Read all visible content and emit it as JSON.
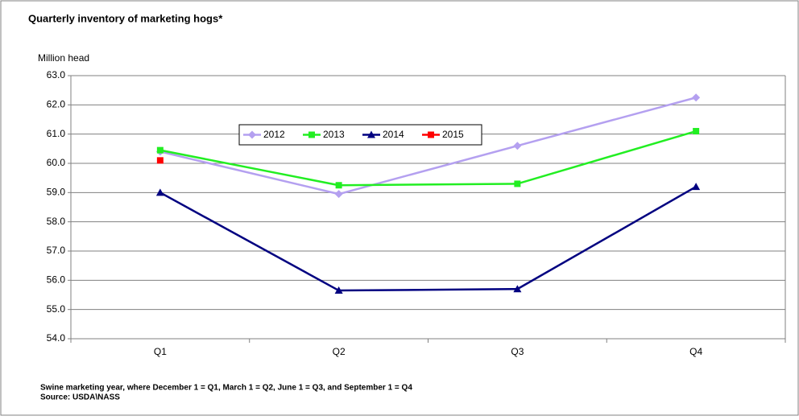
{
  "chart_data": {
    "type": "line",
    "title": "Quarterly inventory of marketing hogs*",
    "y_label": "Million head",
    "categories": [
      "Q1",
      "Q2",
      "Q3",
      "Q4"
    ],
    "series": [
      {
        "name": "2012",
        "color": "#b4a0f0",
        "marker": "diamond",
        "values": [
          60.4,
          58.95,
          60.6,
          62.25
        ]
      },
      {
        "name": "2013",
        "color": "#22ee22",
        "marker": "square",
        "values": [
          60.45,
          59.25,
          59.3,
          61.1
        ]
      },
      {
        "name": "2014",
        "color": "#000080",
        "marker": "triangle",
        "values": [
          59.0,
          55.65,
          55.7,
          59.2
        ]
      },
      {
        "name": "2015",
        "color": "#ff0000",
        "marker": "square",
        "values": [
          60.1,
          null,
          null,
          null
        ]
      }
    ],
    "ylim": [
      54,
      63
    ],
    "yticks": [
      {
        "value": 54,
        "label": "54.0"
      },
      {
        "value": 55,
        "label": "55.0"
      },
      {
        "value": 56,
        "label": "56.0"
      },
      {
        "value": 57,
        "label": "57.0"
      },
      {
        "value": 58,
        "label": "58.0"
      },
      {
        "value": 59,
        "label": "59.0"
      },
      {
        "value": 60,
        "label": "60.0"
      },
      {
        "value": 61,
        "label": "61.0"
      },
      {
        "value": 62,
        "label": "62.0"
      },
      {
        "value": 63,
        "label": "63.0"
      }
    ],
    "grid": true,
    "notes": [
      "Swine marketing year, where December 1 = Q1, March 1 = Q2, June 1 = Q3, and September 1 = Q4",
      "Source: USDA\\NASS"
    ]
  }
}
